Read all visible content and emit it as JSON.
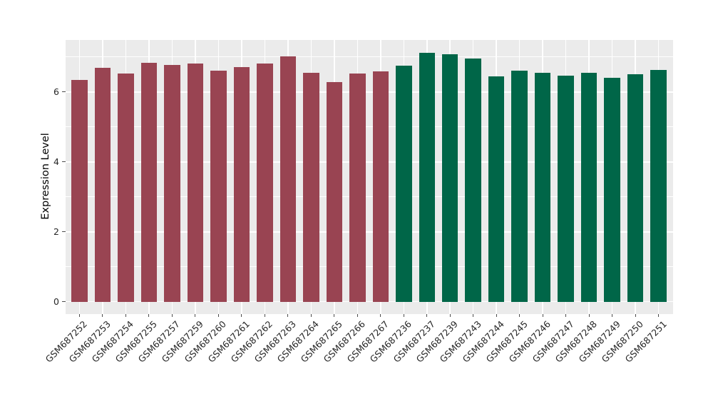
{
  "chart_data": {
    "type": "bar",
    "title": "",
    "xlabel": "",
    "ylabel": "Expression Level",
    "ylim": [
      0,
      7.5
    ],
    "yticks": [
      0,
      2,
      4,
      6
    ],
    "yticks_minor": [
      1,
      3,
      5,
      7
    ],
    "grid": "on",
    "legend": "none",
    "categories": [
      "GSM687252",
      "GSM687253",
      "GSM687254",
      "GSM687255",
      "GSM687257",
      "GSM687259",
      "GSM687260",
      "GSM687261",
      "GSM687262",
      "GSM687263",
      "GSM687264",
      "GSM687265",
      "GSM687266",
      "GSM687267",
      "GSM687236",
      "GSM687237",
      "GSM687239",
      "GSM687243",
      "GSM687244",
      "GSM687245",
      "GSM687246",
      "GSM687247",
      "GSM687248",
      "GSM687249",
      "GSM687250",
      "GSM687251"
    ],
    "values": [
      6.35,
      6.69,
      6.52,
      6.83,
      6.77,
      6.81,
      6.6,
      6.71,
      6.81,
      7.02,
      6.55,
      6.28,
      6.52,
      6.58,
      6.75,
      7.13,
      7.07,
      6.96,
      6.44,
      6.62,
      6.55,
      6.46,
      6.54,
      6.41,
      6.5,
      6.63
    ],
    "bar_group": [
      "group-1",
      "group-1",
      "group-1",
      "group-1",
      "group-1",
      "group-1",
      "group-1",
      "group-1",
      "group-1",
      "group-1",
      "group-1",
      "group-1",
      "group-1",
      "group-1",
      "group-2",
      "group-2",
      "group-2",
      "group-2",
      "group-2",
      "group-2",
      "group-2",
      "group-2",
      "group-2",
      "group-2",
      "group-2",
      "group-2"
    ],
    "group_colors": {
      "group-1": "#994452",
      "group-2": "#006648"
    },
    "style_colors": {
      "panel_bg": "#EBEBEB",
      "gridline": "#FFFFFF",
      "tick_mark": "#4d4d4d",
      "tick_text": "#262626",
      "axis_title_text": "#000000"
    }
  }
}
